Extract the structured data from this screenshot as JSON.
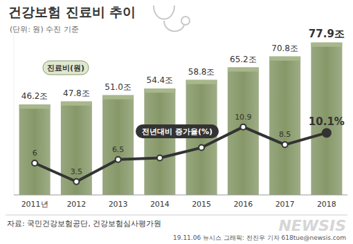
{
  "chart_data": {
    "type": "bar",
    "title": "건강보험 진료비 추이",
    "subtitle": "(단위: 원) 수진 기준",
    "categories": [
      "2011년",
      "2012",
      "2013",
      "2014",
      "2015",
      "2016",
      "2017",
      "2018"
    ],
    "series": [
      {
        "name": "진료비(원)",
        "type": "bar",
        "color": "#869868",
        "values": [
          46.2,
          47.8,
          51.0,
          54.4,
          58.8,
          65.2,
          70.8,
          77.9
        ],
        "value_labels": [
          "46.2조",
          "47.8조",
          "51.0조",
          "54.4조",
          "58.8조",
          "65.2조",
          "70.8조",
          "77.9조"
        ]
      },
      {
        "name": "전년대비 증가율(%)",
        "type": "line",
        "color": "#333333",
        "axis": "y2",
        "marker": "circle",
        "values": [
          6,
          3.5,
          6.5,
          6.7,
          8.1,
          10.9,
          8.5,
          10.1
        ],
        "value_labels": [
          "6",
          "3.5",
          "6.5",
          null,
          null,
          "10.9",
          "8.5",
          "10.1%"
        ]
      }
    ],
    "ylim": [
      0,
      82
    ],
    "y2lim": [
      1.7,
      23.4
    ],
    "data_labels": true,
    "tick_labels": "x",
    "source": "자료: 국민건강보험공단, 건강보험심사평가원",
    "credit": "19.11.06 뉴시스 그래픽: 전진우 기자 618tue@newsis.com",
    "watermark": "NEWSIS"
  }
}
